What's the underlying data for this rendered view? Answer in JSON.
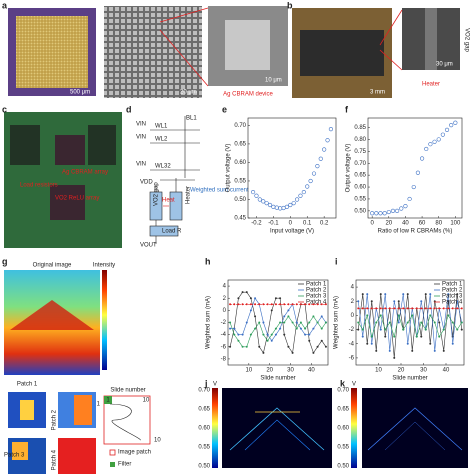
{
  "panels": [
    "a",
    "b",
    "c",
    "d",
    "e",
    "f",
    "g",
    "h",
    "i",
    "j",
    "k"
  ],
  "panel_a": {
    "scale_1": "500 μm",
    "scale_2": "20 μm",
    "scale_3": "10 μm",
    "caption": "Ag CBRAM device"
  },
  "panel_b": {
    "scale_1": "3 mm",
    "scale_2": "30 μm",
    "gap": "VO2 gap",
    "caption": "Heater"
  },
  "panel_c": {
    "label_1": "Ag CBRAM array",
    "label_2": "Load resistors",
    "label_3": "VO2 ReLU array"
  },
  "panel_d": {
    "bl": "BL1",
    "vin1": "VIN",
    "vin2": "VIN",
    "vin3": "VIN",
    "wl1": "WL1",
    "wl2": "WL2",
    "wl32": "WL32",
    "vdd": "VDD",
    "gap": "VO2 gap",
    "heater": "Heater",
    "heat": "Heat",
    "current": "Weighted sum current",
    "load": "Load R",
    "vout": "VOUT"
  },
  "panel_g": {
    "title": "Original image",
    "colorbar": "Intensity",
    "patch_1": "Patch 1",
    "patch_2": "Patch 2",
    "patch_3": "Patch 3",
    "patch_4": "Patch 4",
    "slide": "Slide number",
    "image_patch": "Image patch",
    "filter": "Filter",
    "n1": "1",
    "n10": "10",
    "m1": "1",
    "m10": "10"
  },
  "colorbar_j": {
    "label": "V",
    "ticks": [
      "0.70",
      "0.65",
      "0.60",
      "0.55",
      "0.50"
    ]
  },
  "colorbar_k": {
    "label": "V",
    "ticks": [
      "0.70",
      "0.65",
      "0.60",
      "0.55",
      "0.50"
    ]
  },
  "chart_data": [
    {
      "type": "scatter",
      "xlabel": "Input voltage (V)",
      "ylabel": "Output voltage (V)",
      "color": "#3b6fc4",
      "x": [
        -0.22,
        -0.2,
        -0.18,
        -0.16,
        -0.14,
        -0.12,
        -0.1,
        -0.08,
        -0.06,
        -0.04,
        -0.02,
        0,
        0.02,
        0.04,
        0.06,
        0.08,
        0.1,
        0.12,
        0.14,
        0.16,
        0.18,
        0.2,
        0.22,
        0.24
      ],
      "values": [
        0.52,
        0.51,
        0.5,
        0.495,
        0.49,
        0.485,
        0.48,
        0.478,
        0.476,
        0.477,
        0.48,
        0.485,
        0.49,
        0.5,
        0.51,
        0.52,
        0.535,
        0.55,
        0.57,
        0.59,
        0.61,
        0.635,
        0.66,
        0.69
      ],
      "xlim": [
        -0.25,
        0.27
      ],
      "xticks": [
        -0.2,
        -0.1,
        0,
        0.1,
        0.2
      ],
      "ylim": [
        0.45,
        0.72
      ],
      "yticks": [
        0.45,
        {
          "value": 0.5,
          "label": "0.50"
        },
        0.55,
        {
          "value": 0.6,
          "label": "0.60"
        },
        0.65,
        {
          "value": 0.7,
          "label": "0.70"
        }
      ]
    },
    {
      "type": "scatter",
      "xlabel": "Ratio of low R CBRAMs (%)",
      "ylabel": "Output voltage (V)",
      "color": "#3b6fc4",
      "x": [
        0,
        5,
        10,
        15,
        20,
        25,
        30,
        35,
        40,
        45,
        50,
        55,
        60,
        65,
        70,
        75,
        80,
        85,
        90,
        95,
        100
      ],
      "values": [
        0.49,
        0.49,
        0.49,
        0.49,
        0.495,
        0.5,
        0.5,
        0.51,
        0.52,
        0.55,
        0.6,
        0.66,
        0.72,
        0.76,
        0.78,
        0.79,
        0.8,
        0.82,
        0.84,
        0.86,
        0.87
      ],
      "xlim": [
        -5,
        108
      ],
      "xticks": [
        0,
        20,
        40,
        60,
        80,
        100
      ],
      "ylim": [
        0.47,
        0.89
      ],
      "yticks": [
        {
          "value": 0.5,
          "label": "0.50"
        },
        0.55,
        {
          "value": 0.6,
          "label": "0.60"
        },
        0.65,
        {
          "value": 0.7,
          "label": "0.70"
        },
        0.75,
        {
          "value": 0.8,
          "label": "0.80"
        },
        0.85
      ]
    },
    {
      "type": "line",
      "xlabel": "Slide number",
      "ylabel": "Weighted sum (mA)",
      "x": [
        1,
        3,
        5,
        7,
        9,
        11,
        13,
        15,
        17,
        19,
        21,
        23,
        25,
        27,
        29,
        31,
        33,
        35,
        37,
        39,
        41,
        43,
        45,
        47
      ],
      "series": [
        {
          "name": "Patch 1",
          "color": "#333333",
          "values": [
            -6,
            -3,
            2,
            3,
            3,
            2,
            -1,
            -6,
            -7,
            -4,
            0,
            2,
            2,
            -4,
            -6,
            -7,
            -2,
            1,
            1,
            -5,
            -7,
            -6,
            -5,
            -6
          ]
        },
        {
          "name": "Patch 2",
          "color": "#3b6fc4",
          "values": [
            -3,
            -3,
            -4,
            -4,
            -2,
            0,
            2,
            1,
            -2,
            -4,
            -5,
            -4,
            -3,
            -1,
            0,
            1,
            -2,
            -3,
            -4,
            -4,
            -3,
            -2,
            -1,
            -2
          ]
        },
        {
          "name": "Patch 3",
          "color": "#2e9e5b",
          "values": [
            -2,
            -4,
            -5,
            -6,
            -6,
            -4,
            -3,
            -2,
            -4,
            -5,
            -4,
            -3,
            -2,
            -2,
            -1,
            -2,
            -3,
            -2,
            -3,
            -2,
            -1,
            -2,
            -3,
            -2
          ]
        },
        {
          "name": "Patch 4",
          "color": "#e02020",
          "values": [
            1,
            1,
            1,
            1,
            1,
            1,
            1,
            1,
            1,
            1,
            1,
            1,
            1,
            1,
            1,
            1,
            1,
            1,
            1,
            1,
            1,
            1,
            1,
            1
          ]
        }
      ],
      "xlim": [
        0,
        48
      ],
      "xticks": [
        10,
        20,
        30,
        40
      ],
      "ylim": [
        -9,
        5
      ],
      "yticks": [
        4,
        2,
        0,
        -2,
        -4,
        -6,
        -8
      ]
    },
    {
      "type": "line",
      "xlabel": "Slide number",
      "ylabel": "Weighted sum (mA)",
      "x": [
        1,
        3,
        5,
        7,
        9,
        11,
        13,
        15,
        17,
        19,
        21,
        23,
        25,
        27,
        29,
        31,
        33,
        35,
        37,
        39,
        41,
        43,
        45,
        47
      ],
      "series": [
        {
          "name": "Patch 1",
          "color": "#333333",
          "values": [
            -2,
            3,
            -4,
            2,
            -5,
            3,
            -3,
            1,
            -6,
            2,
            -2,
            3,
            -5,
            1,
            -3,
            3,
            -4,
            2,
            -1,
            -5,
            2,
            -3,
            3,
            -2
          ]
        },
        {
          "name": "Patch 2",
          "color": "#3b6fc4",
          "values": [
            2,
            -3,
            3,
            -4,
            1,
            -2,
            3,
            -5,
            2,
            -1,
            3,
            -4,
            1,
            -3,
            2,
            -2,
            3,
            -5,
            1,
            -2,
            3,
            -4,
            2,
            -1
          ]
        },
        {
          "name": "Patch 3",
          "color": "#2e9e5b",
          "values": [
            -1,
            -2,
            0,
            -3,
            -1,
            0,
            -2,
            -1,
            -3,
            0,
            -2,
            -1,
            0,
            -3,
            -1,
            -2,
            0,
            -1,
            -3,
            -2,
            0,
            -1,
            -2,
            -1
          ]
        },
        {
          "name": "Patch 4",
          "color": "#e02020",
          "values": [
            1,
            1,
            1,
            1,
            1,
            1,
            1,
            1,
            1,
            1,
            1,
            1,
            1,
            1,
            1,
            1,
            1,
            1,
            1,
            1,
            1,
            1,
            1,
            1
          ]
        }
      ],
      "xlim": [
        0,
        48
      ],
      "xticks": [
        10,
        20,
        30,
        40
      ],
      "ylim": [
        -7,
        5
      ],
      "yticks": [
        4,
        2,
        0,
        -2,
        -4,
        -6
      ]
    }
  ]
}
